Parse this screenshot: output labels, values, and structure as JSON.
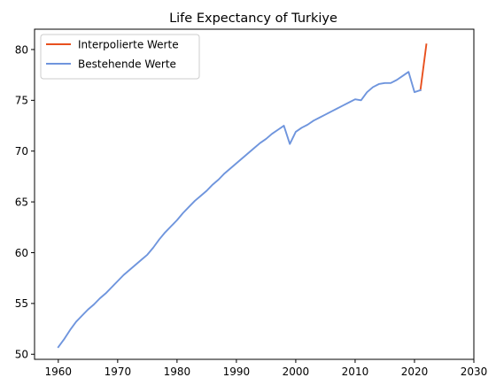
{
  "chart_data": {
    "type": "line",
    "title": "Life Expectancy of Turkiye",
    "xlabel": "",
    "ylabel": "",
    "xlim": [
      1956,
      2030
    ],
    "ylim": [
      49.5,
      82
    ],
    "xticks": [
      1960,
      1970,
      1980,
      1990,
      2000,
      2010,
      2020,
      2030
    ],
    "yticks": [
      50,
      55,
      60,
      65,
      70,
      75,
      80
    ],
    "grid": false,
    "legend_position": "top-left",
    "series": [
      {
        "name": "Interpolierte Werte",
        "color": "#e8501e",
        "x": [
          2021,
          2022
        ],
        "y": [
          76.0,
          80.5
        ]
      },
      {
        "name": "Bestehende Werte",
        "color": "#6f95dd",
        "x": [
          1960,
          1961,
          1962,
          1963,
          1964,
          1965,
          1966,
          1967,
          1968,
          1969,
          1970,
          1971,
          1972,
          1973,
          1974,
          1975,
          1976,
          1977,
          1978,
          1979,
          1980,
          1981,
          1982,
          1983,
          1984,
          1985,
          1986,
          1987,
          1988,
          1989,
          1990,
          1991,
          1992,
          1993,
          1994,
          1995,
          1996,
          1997,
          1998,
          1999,
          2000,
          2001,
          2002,
          2003,
          2004,
          2005,
          2006,
          2007,
          2008,
          2009,
          2010,
          2011,
          2012,
          2013,
          2014,
          2015,
          2016,
          2017,
          2018,
          2019,
          2020,
          2021
        ],
        "y": [
          50.7,
          51.5,
          52.4,
          53.2,
          53.8,
          54.4,
          54.9,
          55.5,
          56.0,
          56.6,
          57.2,
          57.8,
          58.3,
          58.8,
          59.3,
          59.8,
          60.5,
          61.3,
          62.0,
          62.6,
          63.2,
          63.9,
          64.5,
          65.1,
          65.6,
          66.1,
          66.7,
          67.2,
          67.8,
          68.3,
          68.8,
          69.3,
          69.8,
          70.3,
          70.8,
          71.2,
          71.7,
          72.1,
          72.5,
          70.7,
          71.9,
          72.3,
          72.6,
          73.0,
          73.3,
          73.6,
          73.9,
          74.2,
          74.5,
          74.8,
          75.1,
          75.0,
          75.8,
          76.3,
          76.6,
          76.7,
          76.7,
          77.0,
          77.4,
          77.8,
          75.8,
          76.0
        ]
      }
    ]
  }
}
